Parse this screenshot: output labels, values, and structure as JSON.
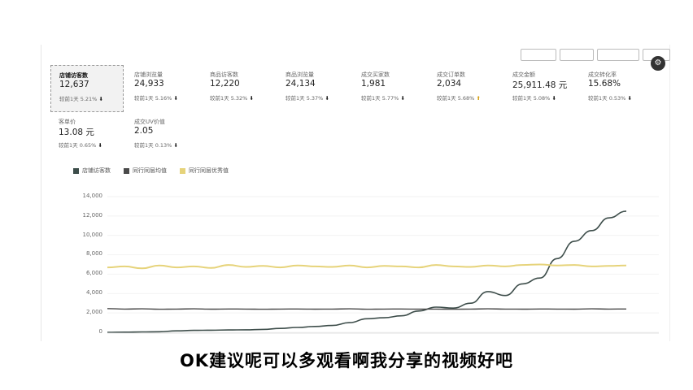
{
  "top": {
    "date_range": "",
    "corner_icon": "gear-icon"
  },
  "metrics": [
    {
      "label": "店铺访客数",
      "value": "12,637",
      "compare": "较前1天 5.21%",
      "trend": "down",
      "selected": true
    },
    {
      "label": "店铺浏览量",
      "value": "24,933",
      "compare": "较前1天 5.16%",
      "trend": "down"
    },
    {
      "label": "商品访客数",
      "value": "12,220",
      "compare": "较前1天 5.32%",
      "trend": "down"
    },
    {
      "label": "商品浏览量",
      "value": "24,134",
      "compare": "较前1天 5.37%",
      "trend": "down"
    },
    {
      "label": "成交买家数",
      "value": "1,981",
      "compare": "较前1天 5.77%",
      "trend": "down"
    },
    {
      "label": "成交订单数",
      "value": "2,034",
      "compare": "较前1天 5.68%",
      "trend": "up"
    },
    {
      "label": "成交金额",
      "value": "25,911.48 元",
      "compare": "较前1天 5.08%",
      "trend": "down"
    },
    {
      "label": "成交转化率",
      "value": "15.68%",
      "compare": "较前1天 0.53%",
      "trend": "down"
    },
    {
      "label": "客单价",
      "value": "13.08 元",
      "compare": "较前1天 0.65%",
      "trend": "down"
    },
    {
      "label": "成交UV价值",
      "value": "2.05",
      "compare": "较前1天 0.13%",
      "trend": "down"
    }
  ],
  "chart_data": {
    "type": "line",
    "legend": [
      "店铺访客数",
      "同行同层均值",
      "同行同层优秀值"
    ],
    "y_ticks": [
      "14,000",
      "12,000",
      "10,000",
      "8,000",
      "6,000",
      "4,000",
      "2,000",
      "0"
    ],
    "ylim": [
      0,
      14000
    ],
    "x_count": 31,
    "colors": {
      "store": "#3d4d4a",
      "peer_avg": "#4a4a4a",
      "peer_excellent": "#e6d37a"
    },
    "series": [
      {
        "name": "店铺访客数",
        "values": [
          0,
          20,
          40,
          60,
          150,
          200,
          220,
          240,
          260,
          300,
          400,
          500,
          600,
          700,
          1000,
          1400,
          1500,
          1700,
          2200,
          2600,
          2500,
          3000,
          4200,
          3800,
          5000,
          5600,
          7600,
          9400,
          10500,
          11800,
          12500
        ]
      },
      {
        "name": "同行同层均值",
        "values": [
          2450,
          2400,
          2420,
          2380,
          2400,
          2420,
          2390,
          2410,
          2400,
          2380,
          2400,
          2410,
          2390,
          2400,
          2420,
          2380,
          2400,
          2410,
          2390,
          2400,
          2380,
          2400,
          2420,
          2400,
          2390,
          2410,
          2400,
          2390,
          2420,
          2400,
          2410
        ]
      },
      {
        "name": "同行同层优秀值",
        "values": [
          6700,
          6800,
          6600,
          6900,
          6700,
          6800,
          6650,
          6950,
          6750,
          6850,
          6700,
          6900,
          6800,
          6750,
          6900,
          6700,
          6850,
          6800,
          6700,
          6950,
          6800,
          6750,
          6900,
          6800,
          6950,
          7000,
          6900,
          6950,
          6800,
          6850,
          6900
        ]
      }
    ]
  },
  "subtitle": "OK建议呢可以多观看啊我分享的视频好吧"
}
